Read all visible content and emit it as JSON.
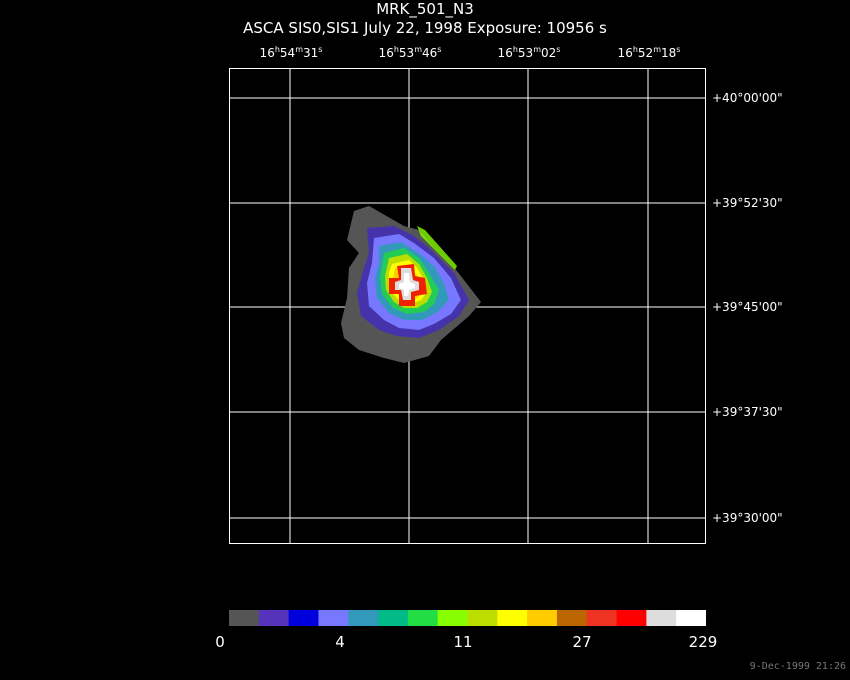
{
  "header": {
    "title": "MRK_501_N3",
    "subtitle": "ASCA SIS0,SIS1 July 22, 1998 Exposure: 10956 s"
  },
  "ra_ticks": [
    {
      "h": "16",
      "m": "54",
      "s": "31"
    },
    {
      "h": "16",
      "m": "53",
      "s": "46"
    },
    {
      "h": "16",
      "m": "53",
      "s": "02"
    },
    {
      "h": "16",
      "m": "52",
      "s": "18"
    }
  ],
  "dec_ticks": [
    "+40°00'00\"",
    "+39°52'30\"",
    "+39°45'00\"",
    "+39°37'30\"",
    "+39°30'00\""
  ],
  "colorbar": {
    "labels": [
      "0",
      "4",
      "11",
      "27",
      "229"
    ],
    "colors": [
      "#555555",
      "#5533bb",
      "#0000dd",
      "#7777ff",
      "#3399bb",
      "#00bb88",
      "#22dd44",
      "#88ff00",
      "#bbdd00",
      "#ffff00",
      "#ffcc00",
      "#bb6600",
      "#ee3322",
      "#ff0000",
      "#dddddd",
      "#ffffff"
    ]
  },
  "timestamp": "9-Dec-1999 21:26"
}
